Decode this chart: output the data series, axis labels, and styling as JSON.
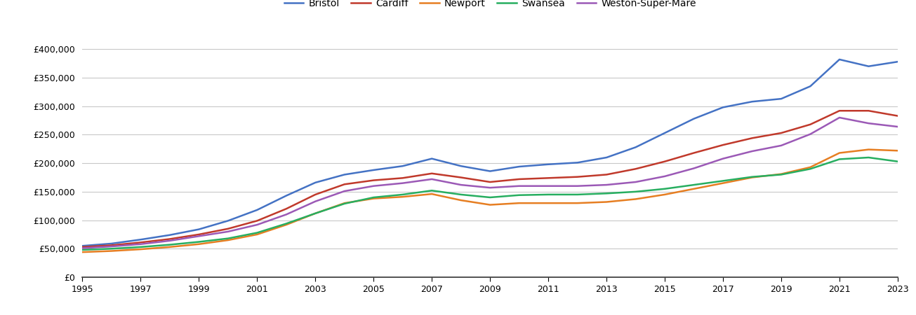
{
  "years": [
    1995,
    1996,
    1997,
    1998,
    1999,
    2000,
    2001,
    2002,
    2003,
    2004,
    2005,
    2006,
    2007,
    2008,
    2009,
    2010,
    2011,
    2012,
    2013,
    2014,
    2015,
    2016,
    2017,
    2018,
    2019,
    2020,
    2021,
    2022,
    2023
  ],
  "series": {
    "Bristol": [
      55000,
      59000,
      66000,
      74000,
      84000,
      99000,
      118000,
      143000,
      166000,
      180000,
      188000,
      195000,
      208000,
      195000,
      186000,
      194000,
      198000,
      201000,
      210000,
      228000,
      253000,
      278000,
      298000,
      308000,
      313000,
      335000,
      382000,
      370000,
      378000
    ],
    "Cardiff": [
      53000,
      56000,
      61000,
      67000,
      75000,
      85000,
      99000,
      120000,
      145000,
      163000,
      170000,
      174000,
      182000,
      175000,
      167000,
      172000,
      174000,
      176000,
      180000,
      190000,
      203000,
      218000,
      232000,
      244000,
      253000,
      268000,
      292000,
      292000,
      283000
    ],
    "Newport": [
      44000,
      46000,
      49000,
      53000,
      58000,
      65000,
      75000,
      92000,
      112000,
      130000,
      138000,
      141000,
      146000,
      135000,
      127000,
      130000,
      130000,
      130000,
      132000,
      137000,
      145000,
      155000,
      165000,
      175000,
      181000,
      193000,
      218000,
      224000,
      222000
    ],
    "Swansea": [
      48000,
      50000,
      53000,
      57000,
      62000,
      68000,
      78000,
      94000,
      112000,
      129000,
      140000,
      145000,
      152000,
      145000,
      140000,
      144000,
      145000,
      145000,
      147000,
      150000,
      155000,
      162000,
      169000,
      176000,
      180000,
      190000,
      207000,
      210000,
      203000
    ],
    "Weston-Super-Mare": [
      51000,
      54000,
      58000,
      64000,
      72000,
      80000,
      92000,
      110000,
      133000,
      151000,
      160000,
      165000,
      172000,
      162000,
      157000,
      160000,
      160000,
      160000,
      162000,
      167000,
      177000,
      191000,
      208000,
      221000,
      231000,
      251000,
      280000,
      270000,
      264000
    ]
  },
  "colors": {
    "Bristol": "#4472C4",
    "Cardiff": "#C0392B",
    "Newport": "#E67E22",
    "Swansea": "#27AE60",
    "Weston-Super-Mare": "#9B59B6"
  },
  "ylim": [
    0,
    420000
  ],
  "yticks": [
    0,
    50000,
    100000,
    150000,
    200000,
    250000,
    300000,
    350000,
    400000
  ],
  "background_color": "#ffffff",
  "grid_color": "#c8c8c8",
  "line_width": 1.8,
  "legend_order": [
    "Bristol",
    "Cardiff",
    "Newport",
    "Swansea",
    "Weston-Super-Mare"
  ]
}
